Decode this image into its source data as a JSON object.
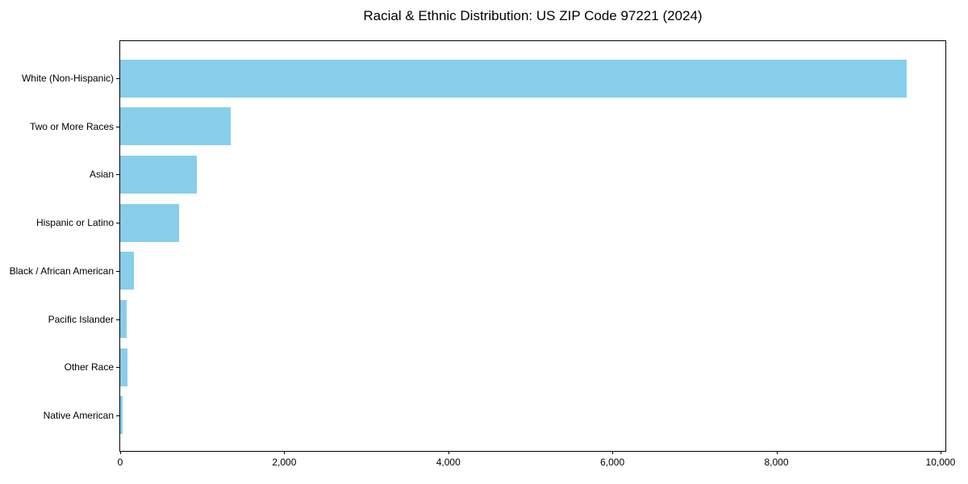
{
  "chart_data": {
    "type": "bar",
    "orientation": "horizontal",
    "title": "Racial & Ethnic Distribution: US ZIP Code 97221 (2024)",
    "categories": [
      "White (Non-Hispanic)",
      "Two or More Races",
      "Asian",
      "Hispanic or Latino",
      "Black / African American",
      "Pacific Islander",
      "Other Race",
      "Native American"
    ],
    "values": [
      9590,
      1350,
      930,
      720,
      170,
      75,
      85,
      30
    ],
    "xlabel": "",
    "ylabel": "",
    "xlim": [
      0,
      10060
    ],
    "x_ticks": [
      0,
      2000,
      4000,
      6000,
      8000,
      10000
    ],
    "x_tick_labels": [
      "0",
      "2,000",
      "4,000",
      "6,000",
      "8,000",
      "10,000"
    ],
    "bar_color": "#87CEEB",
    "grid": false,
    "legend": "none"
  }
}
